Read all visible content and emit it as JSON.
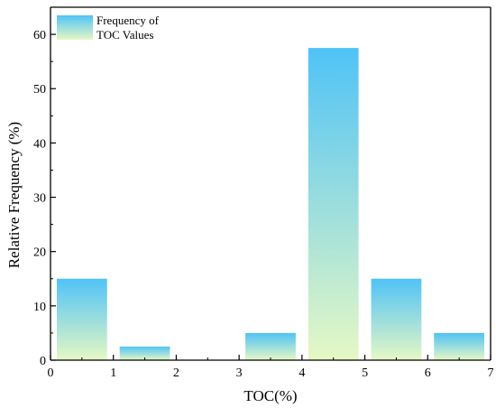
{
  "chart_data": {
    "type": "bar",
    "xlabel": "TOC(%)",
    "ylabel": "Relative Frequency (%)",
    "xlim": [
      0,
      7
    ],
    "ylim": [
      0,
      65
    ],
    "xticks": [
      0,
      1,
      2,
      3,
      4,
      5,
      6,
      7
    ],
    "yticks": [
      0,
      10,
      20,
      30,
      40,
      50,
      60
    ],
    "bins": [
      {
        "start": 0,
        "end": 1,
        "value": 15
      },
      {
        "start": 1,
        "end": 2,
        "value": 2.5
      },
      {
        "start": 2,
        "end": 3,
        "value": 0
      },
      {
        "start": 3,
        "end": 4,
        "value": 5
      },
      {
        "start": 4,
        "end": 5,
        "value": 57.5
      },
      {
        "start": 5,
        "end": 6,
        "value": 15
      },
      {
        "start": 6,
        "end": 7,
        "value": 5
      }
    ],
    "series": [
      {
        "name": "Frequency of TOC Values",
        "name_lines": [
          "Frequency of",
          "TOC Values"
        ]
      }
    ],
    "legend": "top-left",
    "grid": false,
    "colors": {
      "gradient_top": "#4fc3f7",
      "gradient_bottom": "#e6f8c4",
      "axis": "#000000"
    }
  }
}
